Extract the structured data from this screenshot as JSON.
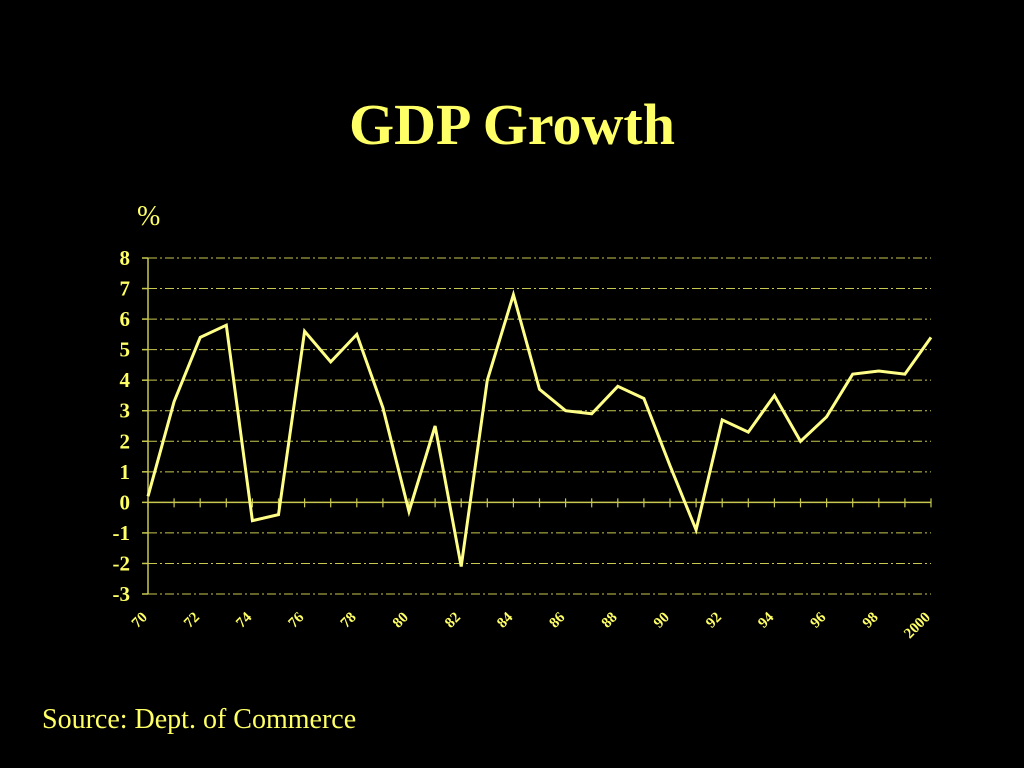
{
  "slide": {
    "title": "GDP Growth",
    "unit": "%",
    "source": "Source: Dept. of Commerce"
  },
  "colors": {
    "background": "#000000",
    "accent": "#ffff66",
    "line": "#ffff88",
    "grid": "#c8c850"
  },
  "chart_data": {
    "type": "line",
    "title": "GDP Growth",
    "xlabel": "",
    "ylabel": "%",
    "ylim": [
      -3,
      8
    ],
    "yticks": [
      8,
      7,
      6,
      5,
      4,
      3,
      2,
      1,
      0,
      -1,
      -2,
      -3
    ],
    "y_tick_labels": [
      "8",
      "7",
      "6",
      "5",
      "4",
      "3",
      "2",
      "1",
      "0",
      "-1",
      "-2",
      "-3"
    ],
    "x_tick_labels": [
      "70",
      "72",
      "74",
      "76",
      "78",
      "80",
      "82",
      "84",
      "86",
      "88",
      "90",
      "92",
      "94",
      "96",
      "98",
      "2000"
    ],
    "x_tick_years": [
      1970,
      1972,
      1974,
      1976,
      1978,
      1980,
      1982,
      1984,
      1986,
      1988,
      1990,
      1992,
      1994,
      1996,
      1998,
      2000
    ],
    "x_range": [
      1970,
      2000
    ],
    "grid": true,
    "series": [
      {
        "x": [
          1970,
          1971,
          1972,
          1973,
          1974,
          1975,
          1976,
          1977,
          1978,
          1979,
          1980,
          1981,
          1982,
          1983,
          1984,
          1985,
          1986,
          1987,
          1988,
          1989,
          1990,
          1991,
          1992,
          1993,
          1994,
          1995,
          1996,
          1997,
          1998,
          1999,
          2000
        ],
        "values": [
          0.2,
          3.3,
          5.4,
          5.8,
          -0.6,
          -0.4,
          5.6,
          4.6,
          5.5,
          3.1,
          -0.3,
          2.5,
          -2.1,
          4.0,
          6.8,
          3.7,
          3.0,
          2.9,
          3.8,
          3.4,
          1.2,
          -0.9,
          2.7,
          2.3,
          3.5,
          2.0,
          2.8,
          4.2,
          4.3,
          4.2,
          5.4
        ]
      }
    ]
  }
}
